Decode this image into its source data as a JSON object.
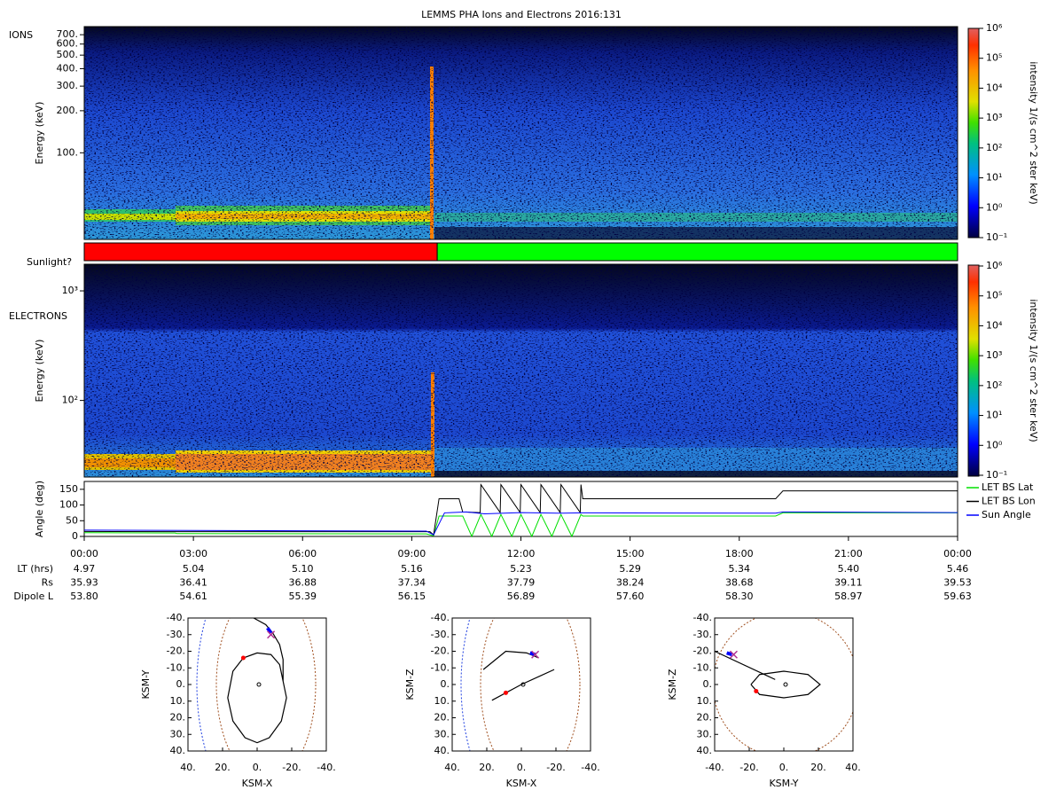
{
  "chart_data": [
    {
      "type": "heatmap",
      "title": "LEMMS PHA Ions and Electrons  2016:131",
      "label": "IONS",
      "ylabel": "Energy (keV)",
      "log": true,
      "ylim": [
        24,
        800
      ],
      "yticks": [
        {
          "value": 100,
          "label": "100."
        },
        {
          "value": 200,
          "label": "200."
        },
        {
          "value": 300,
          "label": "300."
        },
        {
          "value": 400,
          "label": "400."
        },
        {
          "value": 500,
          "label": "500."
        },
        {
          "value": 600,
          "label": "600."
        },
        {
          "value": 700,
          "label": "700."
        }
      ],
      "colorbar_label": "intensity 1/(s cm^2 ster keV)",
      "clim": [
        0.1,
        1000000
      ],
      "cticks": [
        {
          "value": 0.1,
          "label": "10⁻¹"
        },
        {
          "value": 1,
          "label": "10⁰"
        },
        {
          "value": 10,
          "label": "10¹"
        },
        {
          "value": 100,
          "label": "10²"
        },
        {
          "value": 1000,
          "label": "10³"
        },
        {
          "value": 10000,
          "label": "10⁴"
        },
        {
          "value": 100000,
          "label": "10⁵"
        },
        {
          "value": 1000000,
          "label": "10⁶"
        }
      ]
    },
    {
      "type": "timeline",
      "label": "Sunlight?",
      "xlim": [
        0,
        24
      ],
      "segments": [
        {
          "start": 0,
          "end": 9.7,
          "color": "#ff0000"
        },
        {
          "start": 9.7,
          "end": 24,
          "color": "#00ff00"
        }
      ]
    },
    {
      "type": "heatmap",
      "label": "ELECTRONS",
      "ylabel": "Energy (keV)",
      "log": true,
      "ylim": [
        20,
        1750
      ],
      "yticks": [
        {
          "value": 100,
          "label": "10²"
        },
        {
          "value": 1000,
          "label": "10³"
        }
      ],
      "colorbar_label": "intensity 1/(s cm^2 ster keV)",
      "clim": [
        0.1,
        1000000
      ],
      "cticks": [
        {
          "value": 0.1,
          "label": "10⁻¹"
        },
        {
          "value": 1,
          "label": "10⁰"
        },
        {
          "value": 10,
          "label": "10¹"
        },
        {
          "value": 100,
          "label": "10²"
        },
        {
          "value": 1000,
          "label": "10³"
        },
        {
          "value": 10000,
          "label": "10⁴"
        },
        {
          "value": 100000,
          "label": "10⁵"
        },
        {
          "value": 1000000,
          "label": "10⁶"
        }
      ]
    },
    {
      "type": "line",
      "ylabel": "Angle (deg)",
      "xlim": [
        0,
        24
      ],
      "ylim": [
        0,
        175
      ],
      "xticks": [
        {
          "value": 0,
          "label": "00:00"
        },
        {
          "value": 3,
          "label": "03:00"
        },
        {
          "value": 6,
          "label": "06:00"
        },
        {
          "value": 9,
          "label": "09:00"
        },
        {
          "value": 12,
          "label": "12:00"
        },
        {
          "value": 15,
          "label": "15:00"
        },
        {
          "value": 18,
          "label": "18:00"
        },
        {
          "value": 21,
          "label": "21:00"
        },
        {
          "value": 24,
          "label": "00:00"
        }
      ],
      "yticks": [
        0,
        50,
        100,
        150
      ],
      "series": [
        {
          "name": "LET BS Lat",
          "color": "#00e000",
          "x": [
            0,
            2.5,
            2.55,
            9.4,
            9.6,
            9.75,
            10.4,
            10.65,
            10.9,
            11.2,
            11.45,
            11.75,
            12.0,
            12.3,
            12.55,
            12.85,
            13.1,
            13.4,
            13.65,
            13.7,
            19.0,
            19.2,
            24
          ],
          "values": [
            12,
            11,
            9,
            8,
            2,
            65,
            65,
            0,
            70,
            0,
            70,
            0,
            70,
            0,
            70,
            0,
            70,
            0,
            70,
            65,
            65,
            75,
            75
          ]
        },
        {
          "name": "LET BS Lon",
          "color": "#000000",
          "x": [
            0,
            2.5,
            9.5,
            9.6,
            9.75,
            10.3,
            10.4,
            10.88,
            10.9,
            11.43,
            11.45,
            11.98,
            12.0,
            12.53,
            12.55,
            13.08,
            13.1,
            13.63,
            13.65,
            13.7,
            19.0,
            19.2,
            24
          ],
          "values": [
            16,
            15,
            15,
            5,
            120,
            120,
            78,
            76,
            165,
            76,
            165,
            76,
            165,
            76,
            165,
            76,
            165,
            76,
            165,
            120,
            120,
            145,
            145
          ]
        },
        {
          "name": "Sun Angle",
          "color": "#0000ff",
          "x": [
            0,
            9.4,
            9.6,
            9.9,
            10.5,
            11,
            12,
            13,
            13.7,
            19,
            19.2,
            24
          ],
          "values": [
            20,
            17,
            5,
            75,
            78,
            72,
            76,
            74,
            75,
            74,
            78,
            76
          ]
        }
      ]
    },
    {
      "type": "orbit",
      "xlabel": "KSM-X",
      "ylabel": "KSM-Y",
      "xlim": [
        40,
        -40
      ],
      "ylim": [
        -40,
        40
      ],
      "xticks": [
        {
          "value": 40,
          "label": "40."
        },
        {
          "value": 20,
          "label": "20."
        },
        {
          "value": 0,
          "label": "0."
        },
        {
          "value": -20,
          "label": "-20."
        },
        {
          "value": -40,
          "label": "-40."
        }
      ],
      "yticks": [
        {
          "value": -40,
          "label": "-40."
        },
        {
          "value": -30,
          "label": "-30."
        },
        {
          "value": -20,
          "label": "-20."
        },
        {
          "value": -10,
          "label": "-10."
        },
        {
          "value": 0,
          "label": "0."
        },
        {
          "value": 10,
          "label": "10."
        },
        {
          "value": 20,
          "label": "20."
        },
        {
          "value": 30,
          "label": "30."
        },
        {
          "value": 40,
          "label": "40."
        }
      ],
      "series": [
        {
          "color": "#000000",
          "x": [
            2,
            -5,
            -9,
            -13,
            -15,
            -15,
            -17,
            -14,
            -7,
            0,
            7,
            14,
            17,
            14,
            8,
            0,
            -8,
            -13,
            -15
          ],
          "y": [
            -40,
            -36,
            -31,
            -24,
            -15,
            -2,
            8,
            22,
            32,
            35,
            32,
            22,
            8,
            -8,
            -16,
            -19,
            -18,
            -12,
            -2
          ]
        },
        {
          "color": "#0000ff",
          "x": [
            -6,
            -8
          ],
          "y": [
            -34,
            -31
          ]
        }
      ],
      "points": [
        {
          "color": "#ff0000",
          "x": 8,
          "y": -16
        },
        {
          "color": "#b03090",
          "x": -8,
          "y": -30
        }
      ]
    },
    {
      "type": "orbit",
      "xlabel": "KSM-X",
      "ylabel": "KSM-Z",
      "xlim": [
        40,
        -40
      ],
      "ylim": [
        -40,
        40
      ],
      "xticks": [
        {
          "value": 40,
          "label": "40."
        },
        {
          "value": 20,
          "label": "20."
        },
        {
          "value": 0,
          "label": "0."
        },
        {
          "value": -20,
          "label": "-20."
        },
        {
          "value": -40,
          "label": "-40."
        }
      ],
      "yticks": [
        {
          "value": -40,
          "label": "-40."
        },
        {
          "value": -30,
          "label": "-30."
        },
        {
          "value": -20,
          "label": "-20."
        },
        {
          "value": -10,
          "label": "-10."
        },
        {
          "value": 0,
          "label": "0."
        },
        {
          "value": 10,
          "label": "10."
        },
        {
          "value": 20,
          "label": "20."
        },
        {
          "value": 30,
          "label": "30."
        },
        {
          "value": 40,
          "label": "40."
        }
      ],
      "series": [
        {
          "color": "#000000",
          "x": [
            17,
            0,
            -19
          ],
          "y": [
            9.5,
            0,
            -9
          ]
        },
        {
          "color": "#000000",
          "x": [
            22,
            9,
            -3,
            -10
          ],
          "y": [
            -9,
            -20,
            -19,
            -16
          ]
        },
        {
          "color": "#0000ff",
          "x": [
            -5,
            -8
          ],
          "y": [
            -19,
            -18
          ]
        }
      ],
      "points": [
        {
          "color": "#ff0000",
          "x": 9,
          "y": 5
        },
        {
          "color": "#b03090",
          "x": -8,
          "y": -18
        }
      ]
    },
    {
      "type": "orbit",
      "xlabel": "KSM-Y",
      "ylabel": "KSM-Z",
      "xlim": [
        -40,
        40
      ],
      "ylim": [
        -40,
        40
      ],
      "xticks": [
        {
          "value": -40,
          "label": "-40."
        },
        {
          "value": -20,
          "label": "-20."
        },
        {
          "value": 0,
          "label": "0."
        },
        {
          "value": 20,
          "label": "20."
        },
        {
          "value": 40,
          "label": "40."
        }
      ],
      "yticks": [
        {
          "value": -40,
          "label": "-40."
        },
        {
          "value": -30,
          "label": "-30."
        },
        {
          "value": -20,
          "label": "-20."
        },
        {
          "value": -10,
          "label": "-10."
        },
        {
          "value": 0,
          "label": "0."
        },
        {
          "value": 10,
          "label": "10."
        },
        {
          "value": 20,
          "label": "20."
        },
        {
          "value": 30,
          "label": "30."
        },
        {
          "value": 40,
          "label": "40."
        }
      ],
      "series": [
        {
          "color": "#000000",
          "x": [
            -40,
            -5
          ],
          "y": [
            -20,
            -3
          ]
        },
        {
          "color": "#000000",
          "x": [
            -19,
            -14,
            0,
            14,
            21,
            14,
            0,
            -14,
            -19
          ],
          "y": [
            0,
            -6,
            -8,
            -6,
            0,
            6,
            8,
            6,
            0
          ]
        },
        {
          "color": "#0000ff",
          "x": [
            -33,
            -30
          ],
          "y": [
            -19,
            -18
          ]
        }
      ],
      "points": [
        {
          "color": "#ff0000",
          "x": -16,
          "y": 4
        },
        {
          "color": "#b03090",
          "x": -29,
          "y": -18
        }
      ]
    }
  ],
  "ephemeris": {
    "rows": [
      {
        "label": "LT (hrs)",
        "values": [
          "4.97",
          "5.04",
          "5.10",
          "5.16",
          "5.23",
          "5.29",
          "5.34",
          "5.40",
          "5.46"
        ]
      },
      {
        "label": "Rs",
        "values": [
          "35.93",
          "36.41",
          "36.88",
          "37.34",
          "37.79",
          "38.24",
          "38.68",
          "39.11",
          "39.53"
        ]
      },
      {
        "label": "Dipole L",
        "values": [
          "53.80",
          "54.61",
          "55.39",
          "56.15",
          "56.89",
          "57.60",
          "58.30",
          "58.97",
          "59.63"
        ]
      }
    ]
  }
}
